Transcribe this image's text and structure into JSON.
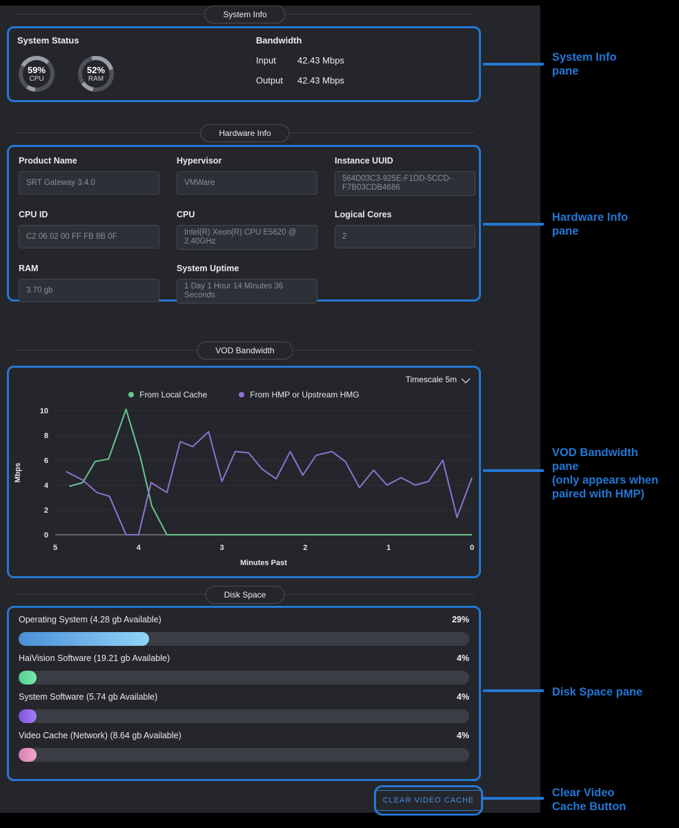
{
  "accent": "#2478d4",
  "sections": {
    "system_info_header": "System Info",
    "hardware_info_header": "Hardware Info",
    "vod_bandwidth_header": "VOD Bandwidth",
    "disk_space_header": "Disk Space"
  },
  "system_info": {
    "system_status_label": "System Status",
    "gauges": [
      {
        "value": "59%",
        "label": "CPU",
        "percent": 59
      },
      {
        "value": "52%",
        "label": "RAM",
        "percent": 52
      }
    ],
    "bandwidth_label": "Bandwidth",
    "rows": [
      {
        "label": "Input",
        "value": "42.43 Mbps"
      },
      {
        "label": "Output",
        "value": "42.43 Mbps"
      }
    ]
  },
  "hardware_info": {
    "fields": [
      {
        "label": "Product Name",
        "value": "SRT Gateway 3.4.0"
      },
      {
        "label": "Hypervisor",
        "value": "VMWare"
      },
      {
        "label": "Instance UUID",
        "value": "564D03C3-925E-F1DD-5CCD-F7B03CDB4686"
      },
      {
        "label": "CPU ID",
        "value": "C2 06 02 00 FF FB 8B 0F"
      },
      {
        "label": "CPU",
        "value": "Intel(R) Xeon(R) CPU E5620 @ 2.40GHz"
      },
      {
        "label": "Logical Cores",
        "value": "2"
      },
      {
        "label": "RAM",
        "value": "3.70 gb"
      },
      {
        "label": "System Uptime",
        "value": "1 Day 1 Hour 14 Minutes 36 Seconds"
      }
    ]
  },
  "vod": {
    "timescale_label": "Timescale 5m"
  },
  "chart_data": {
    "type": "line",
    "title": "VOD Bandwidth",
    "xlabel": "Minutes Past",
    "ylabel": "Mbps",
    "x_ticks": [
      5,
      4,
      3,
      2,
      1,
      0
    ],
    "x_axis_reversed": true,
    "y_ticks": [
      0,
      2,
      4,
      6,
      8,
      10
    ],
    "ylim": [
      0,
      10
    ],
    "grid": true,
    "legend_position": "top",
    "series": [
      {
        "name": "From Local Cache",
        "color": "#68c690",
        "points": [
          [
            4.83,
            3.9
          ],
          [
            4.67,
            4.2
          ],
          [
            4.52,
            5.9
          ],
          [
            4.36,
            6.1
          ],
          [
            4.15,
            10.1
          ],
          [
            3.98,
            6.3
          ],
          [
            3.84,
            2.3
          ],
          [
            3.66,
            0
          ],
          [
            3.4,
            0
          ],
          [
            3.0,
            0
          ],
          [
            2.6,
            0
          ],
          [
            2.2,
            0
          ],
          [
            1.8,
            0
          ],
          [
            1.4,
            0
          ],
          [
            1.0,
            0
          ],
          [
            0.6,
            0
          ],
          [
            0.3,
            0
          ],
          [
            0,
            0
          ]
        ]
      },
      {
        "name": "From HMP or Upstream HMG",
        "color": "#8e73d2",
        "points": [
          [
            4.87,
            5.1
          ],
          [
            4.67,
            4.4
          ],
          [
            4.5,
            3.4
          ],
          [
            4.35,
            3.1
          ],
          [
            4.15,
            0
          ],
          [
            4.0,
            0
          ],
          [
            3.85,
            4.2
          ],
          [
            3.66,
            3.4
          ],
          [
            3.5,
            7.5
          ],
          [
            3.35,
            7.1
          ],
          [
            3.16,
            8.3
          ],
          [
            3.0,
            4.3
          ],
          [
            2.84,
            6.7
          ],
          [
            2.68,
            6.6
          ],
          [
            2.52,
            5.3
          ],
          [
            2.35,
            4.5
          ],
          [
            2.18,
            6.7
          ],
          [
            2.03,
            4.8
          ],
          [
            1.87,
            6.4
          ],
          [
            1.68,
            6.7
          ],
          [
            1.52,
            5.9
          ],
          [
            1.35,
            3.8
          ],
          [
            1.18,
            5.2
          ],
          [
            1.02,
            4.0
          ],
          [
            0.85,
            4.6
          ],
          [
            0.68,
            4.0
          ],
          [
            0.52,
            4.3
          ],
          [
            0.35,
            6.0
          ],
          [
            0.18,
            1.4
          ],
          [
            0.0,
            4.6
          ]
        ]
      }
    ]
  },
  "disk_space": {
    "rows": [
      {
        "label": "Operating System (4.28 gb Available)",
        "percent_label": "29%",
        "percent": 29,
        "color_start": "#4b8fd8",
        "color_end": "#8fd4f8"
      },
      {
        "label": "HaiVision Software (19.21 gb Available)",
        "percent_label": "4%",
        "percent": 4,
        "color_start": "#4fd08e",
        "color_end": "#7fe8ae"
      },
      {
        "label": "System Software (5.74 gb Available)",
        "percent_label": "4%",
        "percent": 4,
        "color_start": "#7e52e0",
        "color_end": "#a57ff0"
      },
      {
        "label": "Video Cache (Network) (8.64 gb Available)",
        "percent_label": "4%",
        "percent": 4,
        "color_start": "#d57fae",
        "color_end": "#f2a8c9"
      }
    ]
  },
  "clear_button_label": "CLEAR VIDEO CACHE",
  "callouts": [
    {
      "text": "System Info\npane"
    },
    {
      "text": "Hardware Info\npane"
    },
    {
      "text": "VOD Bandwidth\npane\n(only appears when\npaired with HMP)"
    },
    {
      "text": "Disk Space pane"
    },
    {
      "text": "Clear Video\nCache Button"
    }
  ]
}
